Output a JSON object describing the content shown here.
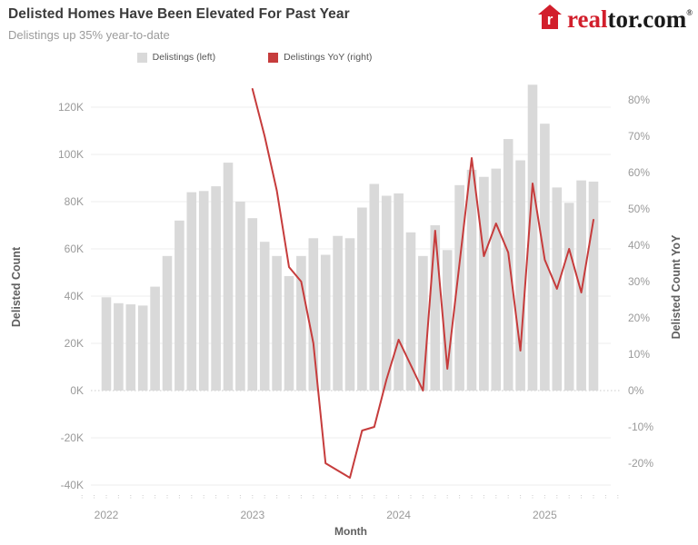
{
  "header": {
    "title": "Delisted Homes Have Been Elevated For Past Year",
    "subtitle": "Delistings up 35% year-to-date",
    "logo": {
      "brand_red_part": "real",
      "brand_black_part": "tor.com",
      "registered_mark": "®",
      "brand_color": "#d21f2c",
      "icon": "realtor-house-icon"
    }
  },
  "legend": [
    {
      "label": "Delistings (left)",
      "color": "#d9d9d9"
    },
    {
      "label": "Delistings YoY (right)",
      "color": "#c63c3c"
    }
  ],
  "chart_data": {
    "type": "combo-bar-line",
    "title": "Delisted Homes Have Been Elevated For Past Year",
    "subtitle": "Delistings up 35% year-to-date",
    "xlabel": "Month",
    "grid": true,
    "categories": [
      "2022-01",
      "2022-02",
      "2022-03",
      "2022-04",
      "2022-05",
      "2022-06",
      "2022-07",
      "2022-08",
      "2022-09",
      "2022-10",
      "2022-11",
      "2022-12",
      "2023-01",
      "2023-02",
      "2023-03",
      "2023-04",
      "2023-05",
      "2023-06",
      "2023-07",
      "2023-08",
      "2023-09",
      "2023-10",
      "2023-11",
      "2023-12",
      "2024-01",
      "2024-02",
      "2024-03",
      "2024-04",
      "2024-05",
      "2024-06",
      "2024-07",
      "2024-08",
      "2024-09",
      "2024-10",
      "2024-11",
      "2024-12",
      "2025-01",
      "2025-02",
      "2025-03",
      "2025-04",
      "2025-05"
    ],
    "series": [
      {
        "name": "Delistings (left)",
        "type": "bar",
        "axis": "left",
        "unit": "thousands",
        "color": "#d9d9d9",
        "values": [
          39.5,
          37,
          36.5,
          36,
          44,
          57,
          72,
          84,
          84.5,
          86.5,
          96.5,
          80,
          73,
          63,
          57,
          48.5,
          57,
          64.5,
          57.5,
          65.5,
          64.5,
          77.5,
          87.5,
          82.5,
          83.5,
          67,
          57,
          70,
          59.5,
          87,
          93.5,
          90.5,
          94,
          106.5,
          97.5,
          129.5,
          113,
          86,
          79.5,
          89,
          88.5
        ]
      },
      {
        "name": "Delistings YoY (right)",
        "type": "line",
        "axis": "right",
        "unit": "percent",
        "color": "#c63c3c",
        "values": [
          null,
          null,
          null,
          null,
          null,
          null,
          null,
          null,
          null,
          null,
          null,
          null,
          83,
          70,
          55,
          34,
          30,
          13,
          -20,
          -22,
          -24,
          -11,
          -10,
          3,
          14,
          7,
          0,
          44,
          6,
          35,
          64,
          37,
          46,
          38,
          11,
          57,
          36,
          28,
          39,
          27,
          47
        ]
      }
    ],
    "left_axis": {
      "label": "Delisted Count",
      "tick_values": [
        120,
        100,
        80,
        60,
        40,
        20,
        0,
        -20,
        -40
      ],
      "tick_labels": [
        "120K",
        "100K",
        "80K",
        "60K",
        "40K",
        "20K",
        "0K",
        "-20K",
        "-40K"
      ],
      "lim": [
        -48,
        135
      ]
    },
    "right_axis": {
      "label": "Delisted Count YoY",
      "tick_values": [
        80,
        70,
        60,
        50,
        40,
        30,
        20,
        10,
        0,
        -10,
        -20
      ],
      "tick_labels": [
        "80%",
        "70%",
        "60%",
        "50%",
        "40%",
        "30%",
        "20%",
        "10%",
        "0%",
        "-10%",
        "-20%"
      ],
      "lim": [
        -31,
        87.5
      ]
    },
    "x_axis": {
      "label": "Month",
      "year_labels": [
        {
          "label": "2022",
          "month_index": 0
        },
        {
          "label": "2023",
          "month_index": 12
        },
        {
          "label": "2024",
          "month_index": 24
        },
        {
          "label": "2025",
          "month_index": 36
        }
      ]
    },
    "legend_position": "top-center"
  },
  "colors": {
    "bar": "#d9d9d9",
    "line": "#c63c3c",
    "grid": "#f1f1f1",
    "zero_line": "#c9c9c9",
    "tick_text": "#9a9a9a",
    "axis_title_text": "#5f5f5f"
  }
}
